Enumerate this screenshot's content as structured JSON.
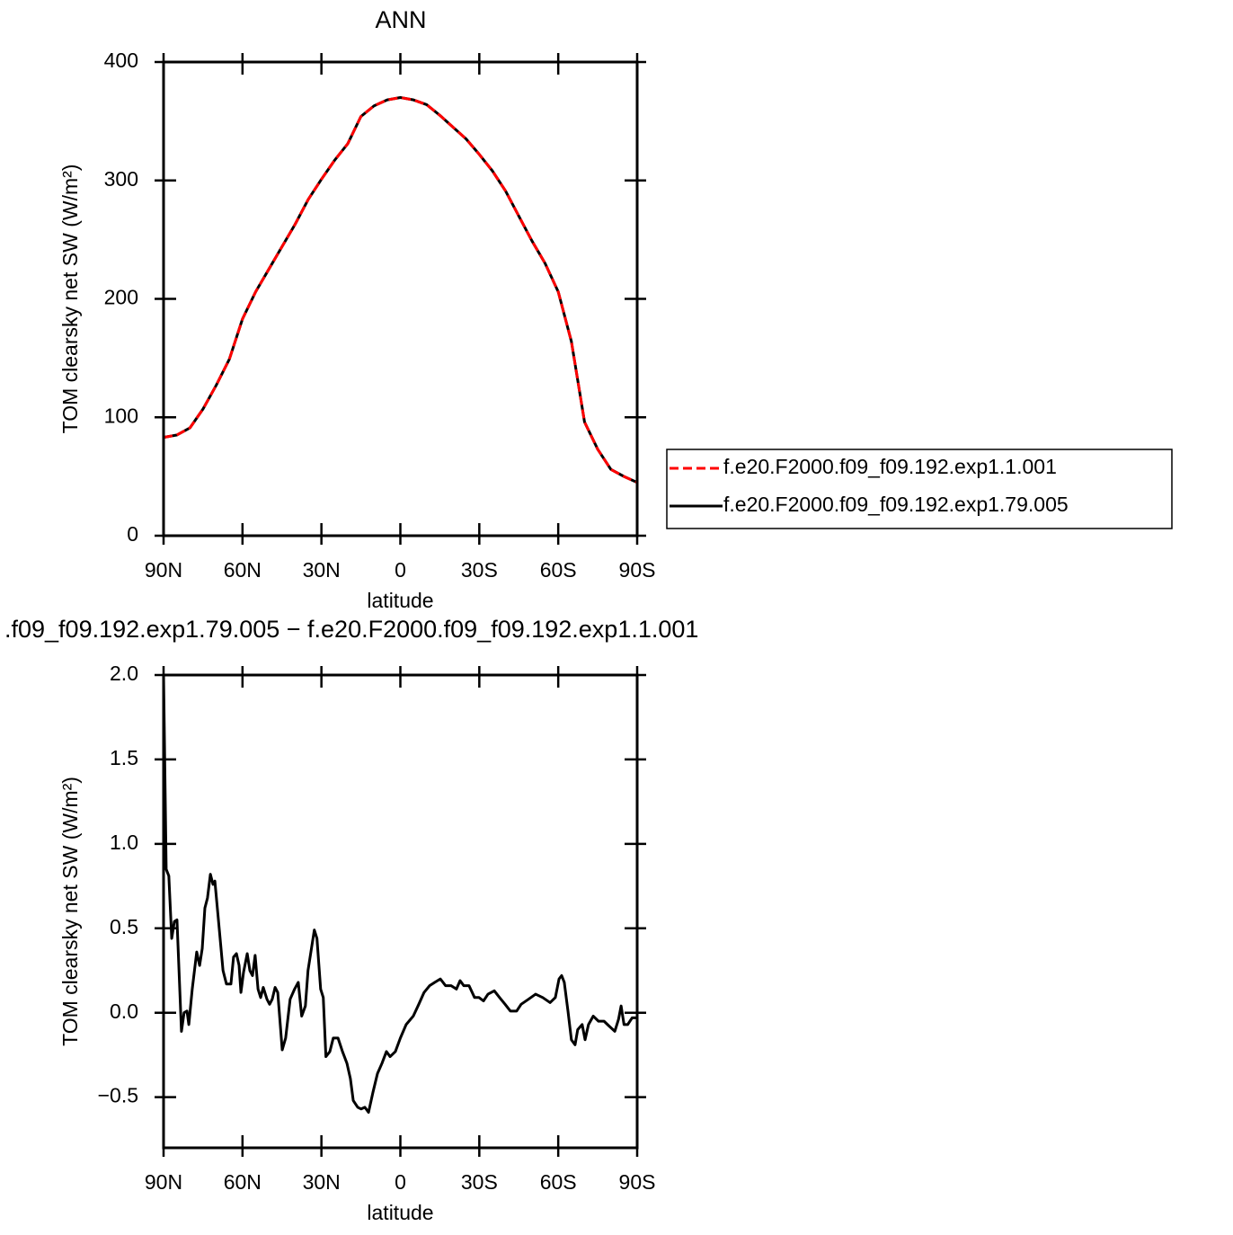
{
  "chart_data": [
    {
      "type": "line",
      "title": "ANN",
      "y_label": "TOM clearsky net SW (W/m²)",
      "x_label": "latitude",
      "xlim": [
        90,
        -90
      ],
      "ylim": [
        0,
        400
      ],
      "xticks": [
        {
          "value": 90,
          "label": "90N"
        },
        {
          "value": 60,
          "label": "60N"
        },
        {
          "value": 30,
          "label": "30N"
        },
        0,
        {
          "value": -30,
          "label": "30S"
        },
        {
          "value": -60,
          "label": "60S"
        },
        {
          "value": -90,
          "label": "90S"
        }
      ],
      "yticks": [
        0,
        100,
        200,
        300,
        400
      ],
      "legend": "right",
      "x": [
        90,
        85,
        80,
        75,
        70,
        65,
        60,
        55,
        50,
        45,
        40,
        35,
        30,
        25,
        20,
        15,
        10,
        5,
        0,
        -5,
        -10,
        -15,
        -20,
        -25,
        -30,
        -35,
        -40,
        -45,
        -50,
        -55,
        -60,
        -65,
        -70,
        -75,
        -80,
        -85,
        -90
      ],
      "series": [
        {
          "name": "f.e20.F2000.f09_f09.192.exp1.1.001",
          "color": "#ff0000",
          "dash": "dashed",
          "values": [
            83,
            85,
            91,
            107,
            127,
            149,
            183,
            206,
            225,
            244,
            263,
            284,
            301,
            317,
            331,
            354,
            363,
            368,
            370,
            368,
            364,
            355,
            345,
            335,
            322,
            308,
            291,
            270,
            249,
            230,
            206,
            164,
            96,
            73,
            56,
            50,
            45
          ]
        },
        {
          "name": "f.e20.F2000.f09_f09.192.exp1.79.005",
          "color": "#000000",
          "values": [
            83,
            85,
            91,
            107,
            127,
            149,
            183,
            206,
            225,
            244,
            263,
            284,
            301,
            317,
            331,
            354,
            363,
            368,
            370,
            368,
            364,
            355,
            345,
            335,
            322,
            308,
            291,
            270,
            249,
            230,
            206,
            164,
            96,
            73,
            56,
            50,
            45
          ]
        }
      ]
    },
    {
      "type": "line",
      "title": ".f09_f09.192.exp1.79.005 − f.e20.F2000.f09_f09.192.exp1.1.001",
      "y_label": "TOM clearsky net SW (W/m²)",
      "x_label": "latitude",
      "xlim": [
        90,
        -90
      ],
      "ylim": [
        -0.8,
        2.0
      ],
      "xticks": [
        {
          "value": 90,
          "label": "90N"
        },
        {
          "value": 60,
          "label": "60N"
        },
        {
          "value": 30,
          "label": "30N"
        },
        0,
        {
          "value": -30,
          "label": "30S"
        },
        {
          "value": -60,
          "label": "60S"
        },
        {
          "value": -90,
          "label": "90S"
        }
      ],
      "yticks": [
        {
          "value": -0.5,
          "label": "−0.5"
        },
        {
          "value": 0,
          "label": "0.0"
        },
        {
          "value": 0.5,
          "label": "0.5"
        },
        {
          "value": 1,
          "label": "1.0"
        },
        {
          "value": 1.5,
          "label": "1.5"
        },
        {
          "value": 2,
          "label": "2.0"
        }
      ],
      "x": [
        90,
        89.0,
        88.0,
        86.9,
        85.9,
        84.9,
        83.2,
        82.2,
        81.1,
        80.4,
        79.1,
        77.4,
        76.3,
        75.3,
        74.3,
        73.3,
        72.2,
        71.2,
        70.5,
        68.8,
        67.4,
        66.1,
        64.4,
        63.4,
        62.3,
        61.3,
        60.6,
        59.6,
        58.2,
        57.2,
        56.2,
        55.2,
        54.1,
        53.1,
        52.1,
        50.7,
        49.7,
        48.7,
        47.6,
        46.6,
        44.9,
        43.6,
        41.9,
        40.2,
        38.8,
        37.5,
        36.1,
        35.1,
        33.7,
        32.7,
        31.7,
        30.3,
        29.3,
        28.3,
        26.8,
        25.5,
        23.7,
        22.0,
        20.3,
        19.0,
        17.9,
        16.2,
        14.9,
        13.5,
        12.1,
        10.4,
        8.7,
        7.0,
        5.3,
        3.9,
        1.9,
        0,
        -2.2,
        -4.9,
        -7.0,
        -9.0,
        -11.1,
        -13.1,
        -15.2,
        -17.2,
        -19.3,
        -21.3,
        -22.7,
        -24.1,
        -26.1,
        -28.2,
        -29.9,
        -31.6,
        -33.3,
        -35.7,
        -37.7,
        -39.8,
        -41.8,
        -44.2,
        -45.9,
        -48.7,
        -51.4,
        -54.1,
        -56.9,
        -58.9,
        -60.3,
        -61.3,
        -62.3,
        -63.7,
        -65.0,
        -66.4,
        -67.4,
        -69.1,
        -70.2,
        -71.5,
        -73.3,
        -75.3,
        -77.4,
        -79.4,
        -81.5,
        -82.9,
        -83.9,
        -85.0,
        -86.4,
        -88.1,
        -90
      ],
      "series": [
        {
          "color": "#000000",
          "values": [
            2.0,
            0.85,
            0.81,
            0.44,
            0.54,
            0.55,
            -0.11,
            0,
            0.01,
            -0.07,
            0.14,
            0.36,
            0.28,
            0.38,
            0.62,
            0.68,
            0.82,
            0.76,
            0.78,
            0.49,
            0.25,
            0.17,
            0.17,
            0.33,
            0.35,
            0.28,
            0.12,
            0.24,
            0.35,
            0.25,
            0.22,
            0.34,
            0.14,
            0.09,
            0.15,
            0.08,
            0.05,
            0.08,
            0.15,
            0.12,
            -0.22,
            -0.15,
            0.08,
            0.14,
            0.18,
            -0.02,
            0.04,
            0.25,
            0.39,
            0.49,
            0.44,
            0.14,
            0.09,
            -0.26,
            -0.23,
            -0.15,
            -0.15,
            -0.23,
            -0.3,
            -0.39,
            -0.52,
            -0.56,
            -0.57,
            -0.56,
            -0.59,
            -0.47,
            -0.36,
            -0.3,
            -0.23,
            -0.26,
            -0.23,
            -0.15,
            -0.07,
            -0.02,
            0.05,
            0.12,
            0.16,
            0.18,
            0.2,
            0.16,
            0.16,
            0.14,
            0.19,
            0.16,
            0.16,
            0.09,
            0.09,
            0.07,
            0.11,
            0.13,
            0.09,
            0.05,
            0.01,
            0.01,
            0.05,
            0.08,
            0.11,
            0.09,
            0.06,
            0.09,
            0.2,
            0.22,
            0.18,
            0.01,
            -0.16,
            -0.19,
            -0.1,
            -0.07,
            -0.16,
            -0.07,
            -0.02,
            -0.05,
            -0.05,
            -0.08,
            -0.11,
            -0.04,
            0.04,
            -0.07,
            -0.07,
            -0.03,
            -0.03
          ]
        }
      ]
    }
  ]
}
